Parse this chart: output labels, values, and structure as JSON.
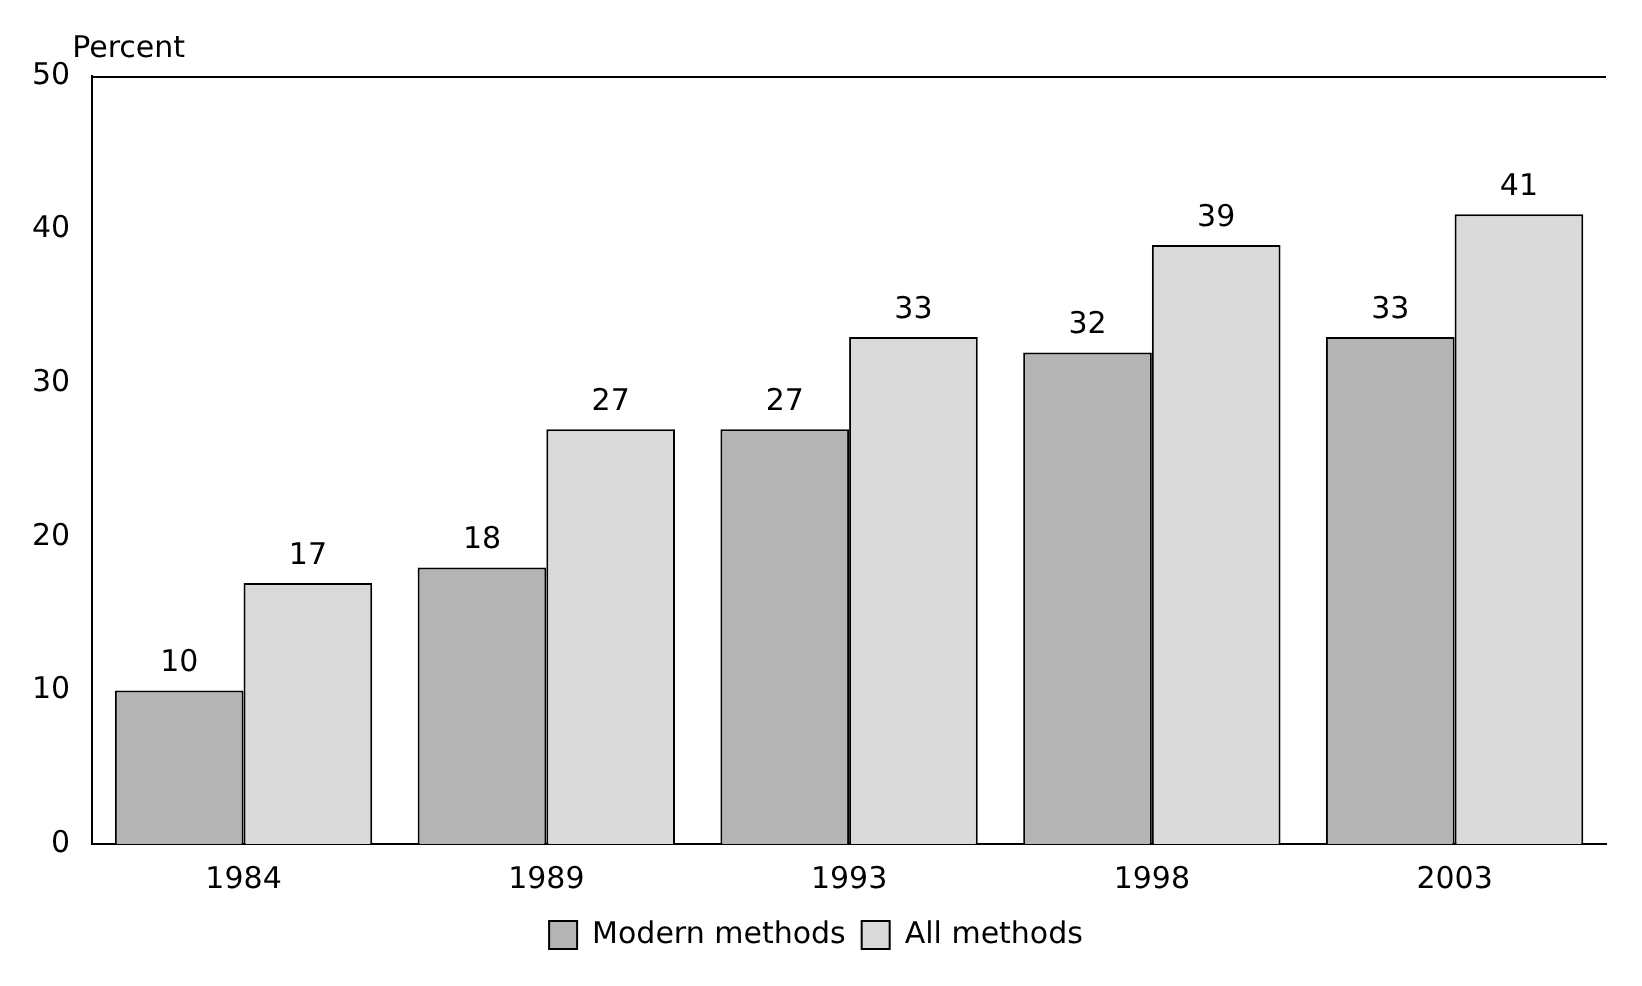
{
  "chart_data": {
    "type": "bar",
    "ylabel": "Percent",
    "categories": [
      "1984",
      "1989",
      "1993",
      "1998",
      "2003"
    ],
    "series": [
      {
        "name": "Modern methods",
        "color": "#b4b4b4",
        "values": [
          10,
          18,
          27,
          32,
          33
        ]
      },
      {
        "name": "All methods",
        "color": "#dadada",
        "values": [
          17,
          27,
          33,
          39,
          41
        ]
      }
    ],
    "ylim": [
      0,
      50
    ],
    "yticks": [
      0,
      10,
      20,
      30,
      40,
      50
    ],
    "grid": false,
    "legend": "bottom",
    "data_labels": true
  }
}
